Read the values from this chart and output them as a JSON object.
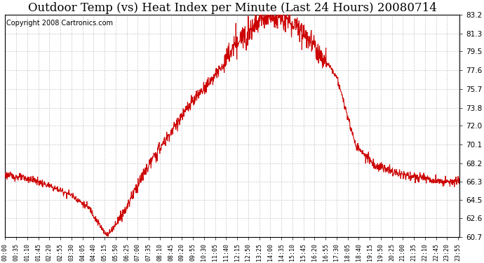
{
  "title": "Outdoor Temp (vs) Heat Index per Minute (Last 24 Hours) 20080714",
  "copyright": "Copyright 2008 Cartronics.com",
  "ylim": [
    60.7,
    83.2
  ],
  "yticks": [
    83.2,
    81.3,
    79.5,
    77.6,
    75.7,
    73.8,
    72.0,
    70.1,
    68.2,
    66.3,
    64.5,
    62.6,
    60.7
  ],
  "line_color": "#cc0000",
  "bg_color": "#ffffff",
  "grid_color": "#bbbbbb",
  "title_fontsize": 12,
  "copyright_fontsize": 7,
  "tick_labels": [
    "00:00",
    "00:35",
    "01:10",
    "01:45",
    "02:20",
    "02:55",
    "03:30",
    "04:05",
    "04:40",
    "05:15",
    "05:50",
    "06:25",
    "07:00",
    "07:35",
    "08:10",
    "08:45",
    "09:20",
    "09:55",
    "10:30",
    "11:05",
    "11:40",
    "12:15",
    "12:50",
    "13:25",
    "14:00",
    "14:35",
    "15:10",
    "15:45",
    "16:20",
    "16:55",
    "17:30",
    "18:05",
    "18:40",
    "19:15",
    "19:50",
    "20:25",
    "21:00",
    "21:35",
    "22:10",
    "22:45",
    "23:20",
    "23:55"
  ]
}
